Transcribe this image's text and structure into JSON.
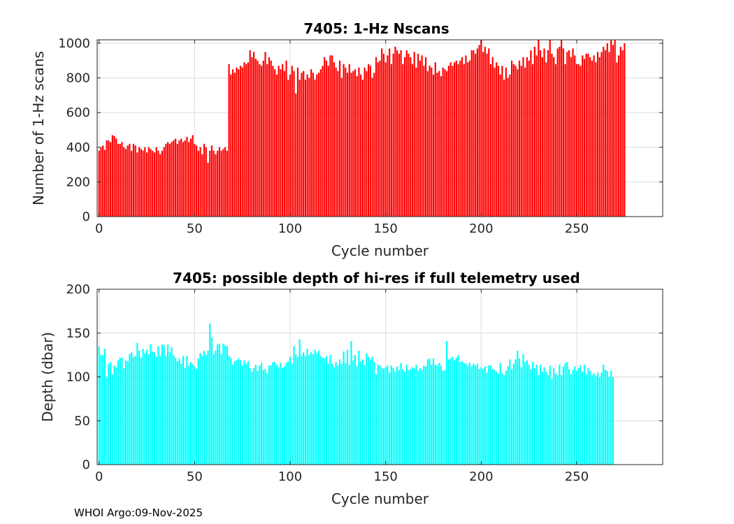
{
  "footer": {
    "text": "WHOI Argo:09-Nov-2025"
  },
  "chart_data": [
    {
      "type": "bar",
      "title": "7405: 1-Hz Nscans",
      "xlabel": "Cycle number",
      "ylabel": "Number of 1-Hz scans",
      "xlim": [
        -1,
        295
      ],
      "ylim": [
        0,
        1020
      ],
      "xticks": [
        0,
        50,
        100,
        150,
        200,
        250
      ],
      "yticks": [
        0,
        200,
        400,
        600,
        800,
        1000
      ],
      "grid": true,
      "color": "#ff0000",
      "x_start": 0,
      "values": [
        380,
        400,
        410,
        385,
        440,
        440,
        430,
        470,
        465,
        450,
        420,
        420,
        430,
        400,
        390,
        410,
        420,
        380,
        420,
        410,
        370,
        400,
        390,
        380,
        400,
        370,
        400,
        390,
        380,
        370,
        400,
        380,
        360,
        380,
        400,
        420,
        430,
        420,
        430,
        440,
        450,
        420,
        440,
        450,
        430,
        440,
        460,
        430,
        450,
        470,
        420,
        410,
        380,
        400,
        360,
        420,
        400,
        310,
        380,
        410,
        380,
        360,
        380,
        400,
        380,
        390,
        400,
        380,
        880,
        820,
        850,
        830,
        860,
        850,
        870,
        860,
        890,
        880,
        890,
        960,
        920,
        950,
        910,
        900,
        880,
        870,
        900,
        950,
        880,
        920,
        900,
        870,
        850,
        820,
        870,
        850,
        880,
        840,
        900,
        790,
        820,
        870,
        840,
        710,
        860,
        790,
        830,
        840,
        790,
        820,
        800,
        850,
        830,
        790,
        820,
        830,
        850,
        870,
        920,
        900,
        870,
        930,
        930,
        890,
        860,
        840,
        900,
        800,
        880,
        860,
        830,
        880,
        830,
        840,
        850,
        810,
        860,
        820,
        790,
        860,
        840,
        880,
        870,
        800,
        830,
        920,
        890,
        900,
        970,
        940,
        890,
        930,
        970,
        880,
        940,
        980,
        960,
        940,
        960,
        880,
        920,
        960,
        940,
        920,
        880,
        950,
        860,
        940,
        900,
        930,
        870,
        920,
        840,
        870,
        860,
        820,
        890,
        830,
        840,
        810,
        860,
        850,
        840,
        870,
        890,
        870,
        890,
        900,
        880,
        900,
        920,
        880,
        930,
        890,
        900,
        960,
        960,
        940,
        970,
        990,
        1020,
        950,
        980,
        940,
        970,
        880,
        920,
        860,
        890,
        870,
        820,
        870,
        790,
        860,
        800,
        820,
        900,
        880,
        870,
        850,
        900,
        870,
        920,
        860,
        920,
        900,
        960,
        880,
        980,
        930,
        1020,
        960,
        920,
        970,
        890,
        960,
        1020,
        940,
        920,
        880,
        970,
        980,
        1020,
        970,
        880,
        950,
        960,
        920,
        970,
        930,
        880,
        880,
        870,
        930,
        910,
        940,
        940,
        920,
        900,
        930,
        890,
        950,
        920,
        950,
        980,
        960,
        1000,
        950,
        1020,
        990,
        1020,
        890,
        930,
        980,
        960,
        1000
      ]
    },
    {
      "type": "bar",
      "title": "7405: possible depth of hi-res if full telemetry used",
      "xlabel": "Cycle number",
      "ylabel": "Depth (dbar)",
      "xlim": [
        -1,
        295
      ],
      "ylim": [
        0,
        200
      ],
      "xticks": [
        0,
        50,
        100,
        150,
        200,
        250
      ],
      "yticks": [
        0,
        50,
        100,
        150,
        200
      ],
      "grid": true,
      "color": "#00ffff",
      "x_start": 0,
      "values": [
        135,
        125,
        125,
        132,
        100,
        115,
        117,
        103,
        113,
        111,
        119,
        122,
        122,
        110,
        119,
        118,
        126,
        128,
        123,
        124,
        139,
        130,
        122,
        132,
        127,
        131,
        126,
        137,
        129,
        128,
        123,
        135,
        124,
        137,
        136,
        124,
        137,
        128,
        134,
        125,
        122,
        118,
        121,
        115,
        124,
        110,
        124,
        113,
        117,
        115,
        112,
        109,
        121,
        127,
        124,
        130,
        125,
        130,
        161,
        145,
        126,
        130,
        137,
        138,
        126,
        138,
        136,
        135,
        124,
        122,
        114,
        118,
        119,
        121,
        119,
        113,
        119,
        115,
        118,
        110,
        106,
        110,
        114,
        107,
        113,
        116,
        108,
        109,
        104,
        113,
        113,
        117,
        117,
        114,
        111,
        116,
        110,
        112,
        116,
        118,
        123,
        115,
        135,
        126,
        123,
        143,
        124,
        128,
        124,
        132,
        125,
        128,
        126,
        131,
        127,
        130,
        124,
        122,
        121,
        124,
        115,
        125,
        115,
        111,
        117,
        113,
        120,
        115,
        129,
        116,
        131,
        114,
        141,
        119,
        125,
        112,
        130,
        118,
        120,
        114,
        127,
        123,
        120,
        123,
        117,
        103,
        114,
        113,
        110,
        110,
        111,
        113,
        105,
        113,
        110,
        106,
        112,
        108,
        116,
        109,
        106,
        114,
        108,
        109,
        111,
        110,
        114,
        107,
        110,
        108,
        113,
        112,
        120,
        121,
        114,
        121,
        114,
        113,
        116,
        113,
        107,
        108,
        141,
        120,
        121,
        123,
        119,
        122,
        125,
        117,
        118,
        116,
        115,
        113,
        116,
        112,
        115,
        113,
        115,
        109,
        111,
        109,
        112,
        105,
        113,
        113,
        109,
        108,
        106,
        104,
        116,
        104,
        102,
        107,
        112,
        120,
        109,
        115,
        120,
        130,
        121,
        111,
        126,
        117,
        119,
        114,
        109,
        117,
        110,
        114,
        102,
        114,
        106,
        111,
        106,
        102,
        113,
        98,
        110,
        104,
        102,
        114,
        102,
        112,
        116,
        117,
        109,
        103,
        108,
        112,
        107,
        110,
        113,
        106,
        114,
        103,
        110,
        107,
        102,
        104,
        101,
        105,
        100,
        105,
        114,
        108,
        107,
        100,
        107,
        100
      ]
    }
  ]
}
